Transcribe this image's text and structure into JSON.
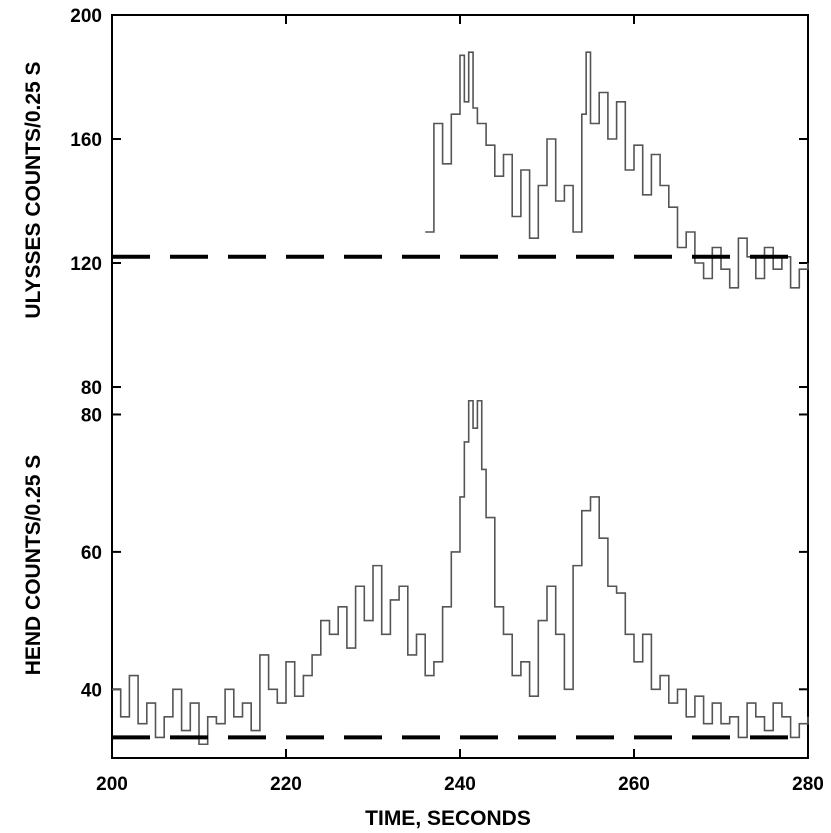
{
  "chart_data": [
    {
      "type": "line",
      "ylabel": "ULYSSES COUNTS/0.25 S",
      "xlabel": "",
      "xlim": [
        200,
        280
      ],
      "ylim": [
        80,
        200
      ],
      "yticks": [
        "80",
        "120",
        "160",
        "200"
      ],
      "grid": false,
      "series": [
        {
          "style": "step",
          "color": "#555555",
          "x": [
            236,
            237,
            238,
            239,
            240,
            240.5,
            241,
            241.5,
            242,
            243,
            244,
            245,
            246,
            247,
            248,
            249,
            250,
            251,
            252,
            253,
            254,
            254.5,
            255,
            256,
            257,
            258,
            259,
            260,
            261,
            262,
            263,
            264,
            265,
            266,
            267,
            268,
            269,
            270,
            271,
            272,
            273,
            274,
            275,
            276,
            277,
            278,
            279,
            280
          ],
          "y": [
            130,
            165,
            152,
            168,
            187,
            172,
            188,
            170,
            165,
            158,
            148,
            155,
            135,
            150,
            128,
            145,
            160,
            140,
            145,
            130,
            168,
            188,
            165,
            175,
            160,
            172,
            150,
            158,
            142,
            155,
            145,
            138,
            125,
            130,
            120,
            115,
            125,
            118,
            112,
            128,
            122,
            115,
            125,
            118,
            122,
            112,
            118,
            120
          ]
        },
        {
          "style": "dashed",
          "color": "#000000",
          "x": [
            200,
            280
          ],
          "y": [
            122,
            122
          ]
        }
      ]
    },
    {
      "type": "line",
      "ylabel": "HEND COUNTS/0.25 S",
      "xlabel": "TIME, SECONDS",
      "xlim": [
        200,
        280
      ],
      "ylim": [
        30,
        84
      ],
      "xticks": [
        "200",
        "220",
        "240",
        "260",
        "280"
      ],
      "yticks": [
        "40",
        "60",
        "80"
      ],
      "grid": false,
      "series": [
        {
          "style": "step",
          "color": "#555555",
          "x": [
            200,
            201,
            202,
            203,
            204,
            205,
            206,
            207,
            208,
            209,
            210,
            211,
            212,
            213,
            214,
            215,
            216,
            217,
            218,
            219,
            220,
            221,
            222,
            223,
            224,
            225,
            226,
            227,
            228,
            229,
            230,
            231,
            232,
            233,
            234,
            235,
            236,
            237,
            238,
            239,
            240,
            240.5,
            241,
            241.5,
            242,
            242.5,
            243,
            244,
            245,
            246,
            247,
            248,
            249,
            250,
            251,
            252,
            253,
            254,
            255,
            256,
            257,
            258,
            259,
            260,
            261,
            262,
            263,
            264,
            265,
            266,
            267,
            268,
            269,
            270,
            271,
            272,
            273,
            274,
            275,
            276,
            277,
            278,
            279,
            280
          ],
          "y": [
            40,
            36,
            42,
            35,
            38,
            33,
            36,
            40,
            34,
            38,
            32,
            36,
            35,
            40,
            36,
            38,
            34,
            45,
            40,
            38,
            44,
            39,
            42,
            45,
            50,
            48,
            52,
            46,
            55,
            50,
            58,
            48,
            53,
            55,
            45,
            48,
            42,
            44,
            52,
            60,
            68,
            76,
            82,
            78,
            82,
            72,
            65,
            52,
            48,
            42,
            44,
            39,
            50,
            55,
            48,
            40,
            58,
            66,
            68,
            62,
            55,
            54,
            48,
            44,
            48,
            40,
            42,
            38,
            40,
            36,
            39,
            35,
            38,
            35,
            36,
            33,
            38,
            36,
            34,
            38,
            36,
            33,
            35,
            36
          ]
        },
        {
          "style": "dashed",
          "color": "#000000",
          "x": [
            200,
            280
          ],
          "y": [
            33,
            33
          ]
        }
      ]
    }
  ]
}
